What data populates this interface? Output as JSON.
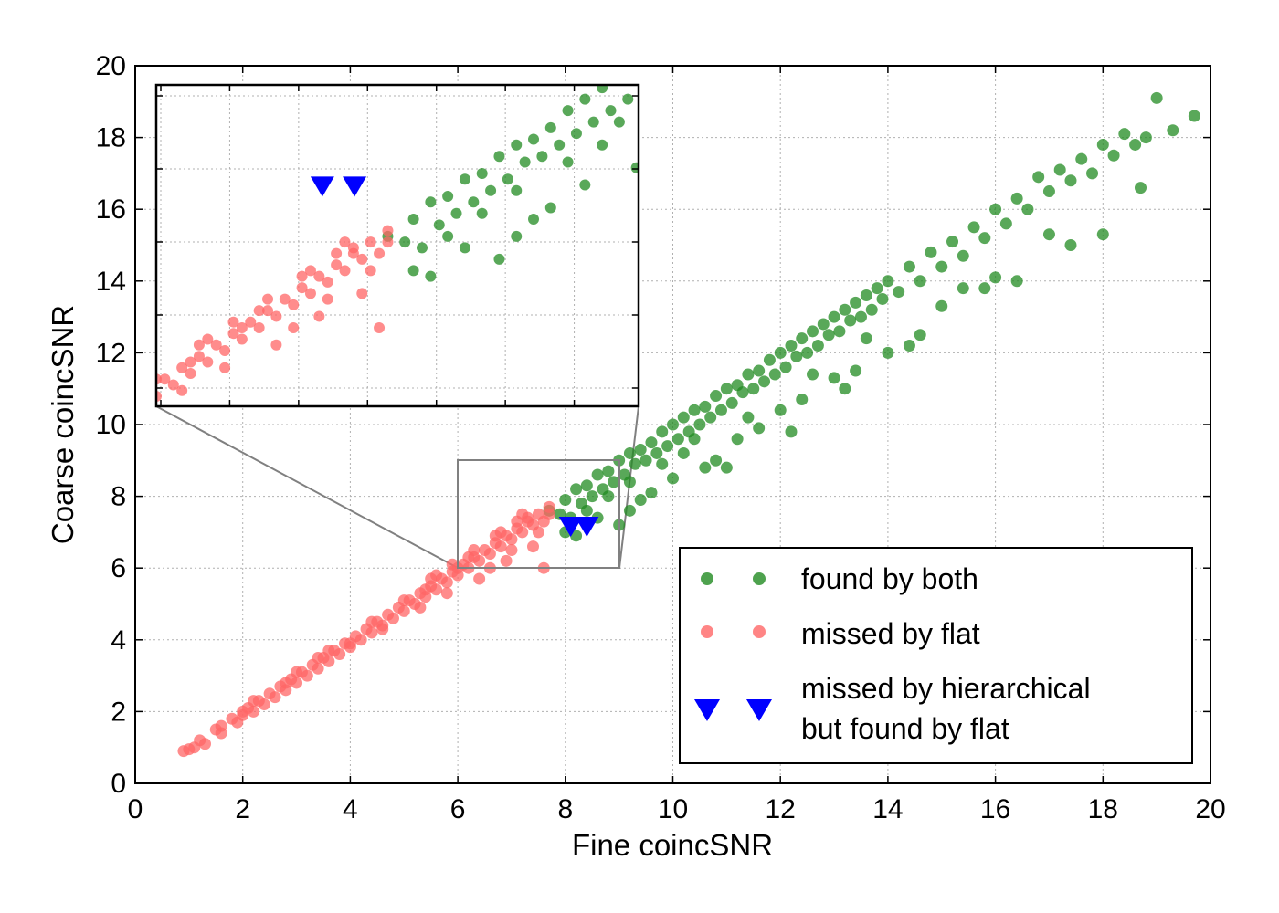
{
  "chart_data": {
    "type": "scatter",
    "xlabel": "Fine coincSNR",
    "ylabel": "Coarse coincSNR",
    "xlim": [
      0,
      20
    ],
    "ylim": [
      0,
      20
    ],
    "xticks": [
      "0",
      "2",
      "4",
      "6",
      "8",
      "10",
      "12",
      "14",
      "16",
      "18",
      "20"
    ],
    "yticks": [
      "0",
      "2",
      "4",
      "6",
      "8",
      "10",
      "12",
      "14",
      "16",
      "18",
      "20"
    ],
    "grid": true,
    "legend_position": "lower-right",
    "legend": [
      {
        "label": "found by both",
        "color": "#228b22",
        "marker": "circle"
      },
      {
        "label": "missed by flat",
        "color": "#ff6666",
        "marker": "circle"
      },
      {
        "label": [
          "missed by hierarchical",
          "but found by flat"
        ],
        "color": "#0000ff",
        "marker": "triangle-down"
      }
    ],
    "series": [
      {
        "name": "found by both",
        "color": "#228b22",
        "marker": "circle",
        "points": [
          [
            7.7,
            7.6
          ],
          [
            7.9,
            7.5
          ],
          [
            8.0,
            7.9
          ],
          [
            8.1,
            7.4
          ],
          [
            8.2,
            8.2
          ],
          [
            8.3,
            7.8
          ],
          [
            8.4,
            8.3
          ],
          [
            8.5,
            8.0
          ],
          [
            8.6,
            8.6
          ],
          [
            8.7,
            8.2
          ],
          [
            8.8,
            8.7
          ],
          [
            8.9,
            8.4
          ],
          [
            9.0,
            9.0
          ],
          [
            9.1,
            8.6
          ],
          [
            9.2,
            9.2
          ],
          [
            9.3,
            8.9
          ],
          [
            9.4,
            9.3
          ],
          [
            9.5,
            9.0
          ],
          [
            9.6,
            9.5
          ],
          [
            9.7,
            9.2
          ],
          [
            9.8,
            9.8
          ],
          [
            9.9,
            9.4
          ],
          [
            10.0,
            10.0
          ],
          [
            10.1,
            9.6
          ],
          [
            10.2,
            10.2
          ],
          [
            10.3,
            9.8
          ],
          [
            10.4,
            10.4
          ],
          [
            10.5,
            10.0
          ],
          [
            10.6,
            10.5
          ],
          [
            10.7,
            10.2
          ],
          [
            10.8,
            10.8
          ],
          [
            10.9,
            10.4
          ],
          [
            11.0,
            11.0
          ],
          [
            11.1,
            10.6
          ],
          [
            11.2,
            11.1
          ],
          [
            11.3,
            10.9
          ],
          [
            11.4,
            11.4
          ],
          [
            11.5,
            11.0
          ],
          [
            11.6,
            11.5
          ],
          [
            11.7,
            11.2
          ],
          [
            11.8,
            11.8
          ],
          [
            11.9,
            11.4
          ],
          [
            12.0,
            12.0
          ],
          [
            12.1,
            11.6
          ],
          [
            12.2,
            12.2
          ],
          [
            12.3,
            11.9
          ],
          [
            12.4,
            12.4
          ],
          [
            12.5,
            12.0
          ],
          [
            12.6,
            12.6
          ],
          [
            12.7,
            12.2
          ],
          [
            12.8,
            12.8
          ],
          [
            12.9,
            12.5
          ],
          [
            13.0,
            13.0
          ],
          [
            13.1,
            12.6
          ],
          [
            13.2,
            13.2
          ],
          [
            13.3,
            12.9
          ],
          [
            13.4,
            13.4
          ],
          [
            13.5,
            13.0
          ],
          [
            13.6,
            13.6
          ],
          [
            13.7,
            13.2
          ],
          [
            13.8,
            13.8
          ],
          [
            13.9,
            13.5
          ],
          [
            14.0,
            14.0
          ],
          [
            14.2,
            13.7
          ],
          [
            14.4,
            14.4
          ],
          [
            14.6,
            14.0
          ],
          [
            14.8,
            14.8
          ],
          [
            15.0,
            14.4
          ],
          [
            15.2,
            15.1
          ],
          [
            15.4,
            14.7
          ],
          [
            15.6,
            15.5
          ],
          [
            15.8,
            15.2
          ],
          [
            16.0,
            16.0
          ],
          [
            16.2,
            15.6
          ],
          [
            16.4,
            16.3
          ],
          [
            16.6,
            16.0
          ],
          [
            16.8,
            16.9
          ],
          [
            17.0,
            16.5
          ],
          [
            17.2,
            17.1
          ],
          [
            17.4,
            16.8
          ],
          [
            17.6,
            17.4
          ],
          [
            17.8,
            17.0
          ],
          [
            18.0,
            17.8
          ],
          [
            18.2,
            17.5
          ],
          [
            18.4,
            18.1
          ],
          [
            18.6,
            17.8
          ],
          [
            18.8,
            18.0
          ],
          [
            19.0,
            19.1
          ],
          [
            19.3,
            18.2
          ],
          [
            19.7,
            18.6
          ],
          [
            10.6,
            8.8
          ],
          [
            11.2,
            9.6
          ],
          [
            12.0,
            10.4
          ],
          [
            13.0,
            11.3
          ],
          [
            14.0,
            12.0
          ],
          [
            15.0,
            13.3
          ],
          [
            16.0,
            14.1
          ],
          [
            17.0,
            15.3
          ],
          [
            18.0,
            15.3
          ],
          [
            18.7,
            16.6
          ],
          [
            9.0,
            7.2
          ],
          [
            9.4,
            7.9
          ],
          [
            10.0,
            8.5
          ],
          [
            10.8,
            9.0
          ],
          [
            11.6,
            9.9
          ],
          [
            12.4,
            10.7
          ],
          [
            13.4,
            11.5
          ],
          [
            14.6,
            12.5
          ],
          [
            15.8,
            13.8
          ],
          [
            17.4,
            15.0
          ],
          [
            8.2,
            6.9
          ],
          [
            8.6,
            7.4
          ],
          [
            9.2,
            7.6
          ],
          [
            9.6,
            8.1
          ],
          [
            10.2,
            9.2
          ],
          [
            11.0,
            8.8
          ],
          [
            12.2,
            9.8
          ],
          [
            13.2,
            11.0
          ],
          [
            14.4,
            12.2
          ],
          [
            16.4,
            14.0
          ],
          [
            8.0,
            7.0
          ],
          [
            8.4,
            7.6
          ],
          [
            8.8,
            8.0
          ],
          [
            9.2,
            8.4
          ],
          [
            9.8,
            8.9
          ],
          [
            10.4,
            9.6
          ],
          [
            11.4,
            10.2
          ],
          [
            12.6,
            11.4
          ],
          [
            13.6,
            12.4
          ],
          [
            15.4,
            13.8
          ]
        ]
      },
      {
        "name": "missed by flat",
        "color": "#ff6666",
        "marker": "circle",
        "points": [
          [
            0.9,
            0.9
          ],
          [
            1.0,
            0.95
          ],
          [
            1.1,
            1.0
          ],
          [
            1.2,
            1.2
          ],
          [
            1.3,
            1.1
          ],
          [
            1.5,
            1.5
          ],
          [
            1.6,
            1.4
          ],
          [
            1.8,
            1.8
          ],
          [
            1.9,
            1.7
          ],
          [
            2.0,
            2.0
          ],
          [
            2.1,
            2.1
          ],
          [
            2.2,
            2.0
          ],
          [
            2.3,
            2.3
          ],
          [
            2.4,
            2.2
          ],
          [
            2.5,
            2.5
          ],
          [
            2.6,
            2.4
          ],
          [
            2.7,
            2.7
          ],
          [
            2.8,
            2.6
          ],
          [
            2.9,
            2.9
          ],
          [
            3.0,
            2.8
          ],
          [
            3.1,
            3.1
          ],
          [
            3.2,
            3.0
          ],
          [
            3.3,
            3.3
          ],
          [
            3.4,
            3.2
          ],
          [
            3.5,
            3.5
          ],
          [
            3.6,
            3.4
          ],
          [
            3.7,
            3.7
          ],
          [
            3.8,
            3.6
          ],
          [
            3.9,
            3.9
          ],
          [
            4.0,
            3.8
          ],
          [
            4.1,
            4.1
          ],
          [
            4.2,
            4.0
          ],
          [
            4.3,
            4.3
          ],
          [
            4.4,
            4.2
          ],
          [
            4.5,
            4.5
          ],
          [
            4.6,
            4.4
          ],
          [
            4.7,
            4.7
          ],
          [
            4.8,
            4.6
          ],
          [
            4.9,
            4.9
          ],
          [
            5.0,
            4.8
          ],
          [
            5.1,
            5.1
          ],
          [
            5.2,
            5.0
          ],
          [
            5.3,
            5.3
          ],
          [
            5.4,
            5.2
          ],
          [
            5.5,
            5.5
          ],
          [
            5.6,
            5.4
          ],
          [
            5.7,
            5.7
          ],
          [
            5.8,
            5.6
          ],
          [
            5.9,
            5.9
          ],
          [
            6.0,
            5.8
          ],
          [
            6.1,
            6.1
          ],
          [
            6.2,
            6.0
          ],
          [
            6.3,
            6.3
          ],
          [
            6.4,
            6.2
          ],
          [
            6.5,
            6.5
          ],
          [
            6.6,
            6.4
          ],
          [
            6.7,
            6.7
          ],
          [
            6.8,
            6.6
          ],
          [
            6.9,
            6.9
          ],
          [
            7.0,
            6.8
          ],
          [
            7.1,
            7.1
          ],
          [
            7.2,
            7.0
          ],
          [
            7.3,
            7.3
          ],
          [
            7.4,
            7.2
          ],
          [
            7.5,
            7.5
          ],
          [
            7.6,
            7.3
          ],
          [
            7.7,
            7.5
          ],
          [
            2.2,
            2.3
          ],
          [
            3.0,
            3.1
          ],
          [
            3.6,
            3.7
          ],
          [
            4.4,
            4.5
          ],
          [
            5.0,
            5.1
          ],
          [
            5.6,
            5.8
          ],
          [
            6.2,
            6.3
          ],
          [
            6.8,
            7.0
          ],
          [
            7.2,
            7.5
          ],
          [
            6.4,
            5.7
          ],
          [
            6.9,
            6.2
          ],
          [
            7.4,
            6.6
          ],
          [
            7.6,
            6.0
          ],
          [
            5.3,
            4.9
          ],
          [
            5.8,
            5.3
          ],
          [
            6.6,
            6.0
          ],
          [
            7.0,
            6.5
          ],
          [
            7.5,
            7.0
          ],
          [
            4.0,
            3.9
          ],
          [
            4.6,
            4.3
          ],
          [
            5.4,
            5.4
          ],
          [
            6.0,
            6.0
          ],
          [
            7.3,
            7.4
          ],
          [
            3.4,
            3.5
          ],
          [
            2.8,
            2.8
          ],
          [
            2.0,
            1.9
          ],
          [
            1.6,
            1.6
          ],
          [
            6.7,
            6.9
          ],
          [
            7.1,
            7.3
          ],
          [
            6.3,
            6.5
          ],
          [
            5.9,
            6.1
          ],
          [
            5.5,
            5.7
          ],
          [
            7.7,
            7.7
          ]
        ]
      },
      {
        "name": "missed by hierarchical but found by flat",
        "color": "#0000ff",
        "marker": "triangle-down",
        "points": [
          [
            8.1,
            7.2
          ],
          [
            8.4,
            7.2
          ]
        ]
      }
    ],
    "zoom_region": {
      "xlim": [
        6,
        9
      ],
      "ylim": [
        6,
        9
      ]
    }
  }
}
